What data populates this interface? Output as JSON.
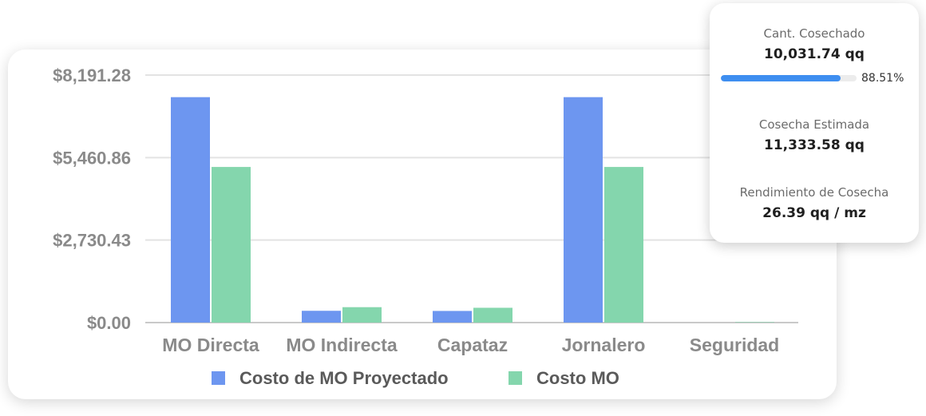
{
  "chart_data": {
    "type": "bar",
    "categories": [
      "MO Directa",
      "MO Indirecta",
      "Capataz",
      "Jornalero",
      "Seguridad"
    ],
    "series": [
      {
        "name": "Costo de MO Proyectado",
        "color": "#6d96f0",
        "values": [
          7460,
          390,
          385,
          7460,
          0
        ]
      },
      {
        "name": "Costo MO",
        "color": "#84d6ad",
        "values": [
          5150,
          510,
          490,
          5150,
          15
        ]
      }
    ],
    "y_ticks": [
      "$0.00",
      "$2,730.43",
      "$5,460.86",
      "$8,191.28"
    ],
    "ylim": [
      0,
      8191.28
    ],
    "grid": true,
    "legend_position": "bottom"
  },
  "stats": {
    "harvested": {
      "label": "Cant. Cosechado",
      "value": "10,031.74 qq",
      "percent_text": "88.51%",
      "percent": 88.51
    },
    "estimated": {
      "label": "Cosecha Estimada",
      "value": "11,333.58 qq"
    },
    "yield": {
      "label": "Rendimiento de Cosecha",
      "value": "26.39 qq / mz"
    }
  }
}
